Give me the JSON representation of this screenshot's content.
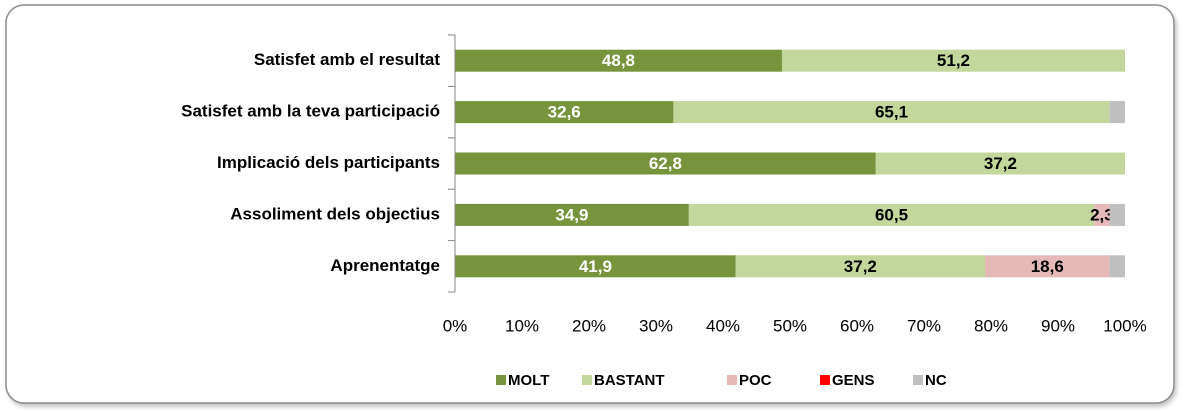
{
  "chart_data": {
    "type": "stacked-bar-horizontal",
    "categories": [
      "Satisfet amb el resultat",
      "Satisfet amb la teva participació",
      "Implicació dels participants",
      "Assoliment dels objectius",
      "Aprenentatge"
    ],
    "series": [
      {
        "name": "MOLT",
        "color": "#77933c",
        "values": [
          48.8,
          32.6,
          62.8,
          34.9,
          41.9
        ],
        "value_labels": [
          "48,8",
          "32,6",
          "62,8",
          "34,9",
          "41,9"
        ]
      },
      {
        "name": "BASTANT",
        "color": "#c3d69b",
        "values": [
          51.2,
          65.1,
          37.2,
          60.5,
          37.2
        ],
        "value_labels": [
          "51,2",
          "65,1",
          "37,2",
          "60,5",
          "37,2"
        ]
      },
      {
        "name": "POC",
        "color": "#e6b9b8",
        "values": [
          0,
          0,
          0,
          2.3,
          18.6
        ],
        "value_labels": [
          null,
          null,
          null,
          "2,3",
          "18,6"
        ]
      },
      {
        "name": "GENS",
        "color": "#ff0000",
        "values": [
          0,
          0,
          0,
          0,
          0
        ],
        "value_labels": [
          null,
          null,
          null,
          null,
          null
        ]
      },
      {
        "name": "NC",
        "color": "#bfbfbf",
        "values": [
          0,
          2.3,
          0,
          2.3,
          2.3
        ],
        "value_labels": [
          null,
          null,
          null,
          null,
          null
        ]
      }
    ],
    "xlim": [
      0,
      100
    ],
    "xticks": [
      {
        "value": 0,
        "label": "0%"
      },
      {
        "value": 10,
        "label": "10%"
      },
      {
        "value": 20,
        "label": "20%"
      },
      {
        "value": 30,
        "label": "30%"
      },
      {
        "value": 40,
        "label": "40%"
      },
      {
        "value": 50,
        "label": "50%"
      },
      {
        "value": 60,
        "label": "60%"
      },
      {
        "value": 70,
        "label": "70%"
      },
      {
        "value": 80,
        "label": "80%"
      },
      {
        "value": 90,
        "label": "90%"
      },
      {
        "value": 100,
        "label": "100%"
      }
    ],
    "legend": "bottom",
    "grid": false
  }
}
